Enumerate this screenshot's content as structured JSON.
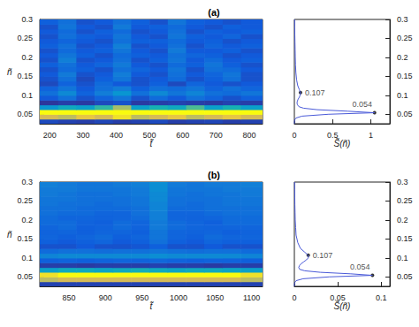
{
  "chart_data": [
    {
      "type": "heatmap",
      "title": "(a)",
      "x_label": "t̃",
      "y_label": "ñ",
      "xlim": [
        170,
        840
      ],
      "ylim": [
        0.025,
        0.3
      ],
      "xticks": [
        200,
        300,
        400,
        500,
        600,
        700,
        800
      ],
      "yticks": [
        0.05,
        0.1,
        0.15,
        0.2,
        0.25,
        0.3
      ],
      "x_edges": [
        170,
        225,
        280,
        335,
        390,
        445,
        500,
        555,
        610,
        665,
        720,
        775,
        840
      ],
      "y_edges": [
        0.025,
        0.0375,
        0.05,
        0.0625,
        0.075,
        0.0875,
        0.1,
        0.1125,
        0.125,
        0.1375,
        0.15,
        0.1625,
        0.175,
        0.1875,
        0.2,
        0.2125,
        0.225,
        0.2375,
        0.25,
        0.2625,
        0.275,
        0.2875,
        0.3
      ],
      "color_range": [
        0,
        1
      ],
      "z": [
        [
          0.08,
          0.06,
          0.05,
          0.07,
          0.05,
          0.06,
          0.08,
          0.05,
          0.06,
          0.07,
          0.05,
          0.06
        ],
        [
          0.85,
          0.8,
          0.9,
          0.85,
          0.95,
          0.8,
          0.85,
          0.9,
          0.8,
          0.85,
          0.9,
          0.85
        ],
        [
          1,
          1,
          1,
          1,
          1,
          1,
          1,
          1,
          1,
          1,
          1,
          1
        ],
        [
          0.35,
          0.45,
          0.4,
          0.55,
          0.75,
          0.4,
          0.5,
          0.45,
          0.6,
          0.4,
          0.5,
          0.4
        ],
        [
          0.03,
          0.05,
          0.04,
          0.08,
          0.1,
          0.04,
          0.05,
          0.06,
          0.05,
          0.04,
          0.06,
          0.05
        ],
        [
          0.12,
          0.2,
          0.1,
          0.15,
          0.22,
          0.1,
          0.18,
          0.12,
          0.2,
          0.15,
          0.1,
          0.14
        ],
        [
          0.2,
          0.3,
          0.15,
          0.25,
          0.35,
          0.2,
          0.3,
          0.22,
          0.28,
          0.2,
          0.18,
          0.22
        ],
        [
          0.15,
          0.22,
          0.12,
          0.2,
          0.25,
          0.14,
          0.2,
          0.18,
          0.22,
          0.15,
          0.2,
          0.16
        ],
        [
          0.08,
          0.15,
          0.1,
          0.18,
          0.12,
          0.1,
          0.14,
          0.08,
          0.16,
          0.12,
          0.1,
          0.12
        ],
        [
          0.1,
          0.2,
          0.08,
          0.14,
          0.22,
          0.1,
          0.12,
          0.18,
          0.1,
          0.14,
          0.2,
          0.1
        ],
        [
          0.12,
          0.24,
          0.1,
          0.12,
          0.25,
          0.12,
          0.1,
          0.2,
          0.12,
          0.16,
          0.22,
          0.1
        ],
        [
          0.1,
          0.18,
          0.14,
          0.1,
          0.2,
          0.16,
          0.12,
          0.22,
          0.1,
          0.2,
          0.18,
          0.12
        ],
        [
          0.14,
          0.2,
          0.12,
          0.16,
          0.24,
          0.12,
          0.1,
          0.18,
          0.14,
          0.22,
          0.14,
          0.1
        ],
        [
          0.1,
          0.26,
          0.1,
          0.12,
          0.2,
          0.1,
          0.14,
          0.22,
          0.12,
          0.18,
          0.12,
          0.14
        ],
        [
          0.12,
          0.22,
          0.14,
          0.1,
          0.18,
          0.14,
          0.12,
          0.2,
          0.16,
          0.14,
          0.1,
          0.12
        ],
        [
          0.1,
          0.18,
          0.12,
          0.14,
          0.22,
          0.12,
          0.1,
          0.24,
          0.12,
          0.12,
          0.14,
          0.1
        ],
        [
          0.14,
          0.2,
          0.1,
          0.12,
          0.26,
          0.1,
          0.12,
          0.2,
          0.1,
          0.16,
          0.12,
          0.14
        ],
        [
          0.12,
          0.16,
          0.12,
          0.1,
          0.2,
          0.14,
          0.14,
          0.18,
          0.12,
          0.14,
          0.1,
          0.12
        ],
        [
          0.1,
          0.2,
          0.14,
          0.12,
          0.22,
          0.12,
          0.1,
          0.22,
          0.14,
          0.12,
          0.16,
          0.1
        ],
        [
          0.12,
          0.18,
          0.1,
          0.14,
          0.18,
          0.1,
          0.12,
          0.2,
          0.1,
          0.14,
          0.12,
          0.14
        ],
        [
          0.1,
          0.22,
          0.12,
          0.1,
          0.24,
          0.12,
          0.14,
          0.18,
          0.12,
          0.1,
          0.14,
          0.12
        ],
        [
          0.14,
          0.2,
          0.1,
          0.12,
          0.2,
          0.14,
          0.1,
          0.22,
          0.14,
          0.12,
          0.1,
          0.12
        ]
      ]
    },
    {
      "type": "line",
      "x_label": "S̃(ñ)",
      "xlim": [
        0,
        1.25
      ],
      "ylim": [
        0.025,
        0.3
      ],
      "xticks": [
        0,
        0.5,
        1
      ],
      "yticks": [
        0.05,
        0.1,
        0.15,
        0.2,
        0.25,
        0.3
      ],
      "color": "#4a5ad8",
      "y": [
        0.025,
        0.03,
        0.035,
        0.04,
        0.045,
        0.05,
        0.054,
        0.058,
        0.062,
        0.066,
        0.07,
        0.075,
        0.08,
        0.085,
        0.09,
        0.095,
        0.1,
        0.107,
        0.115,
        0.125,
        0.14,
        0.16,
        0.18,
        0.2,
        0.22,
        0.24,
        0.26,
        0.28,
        0.3
      ],
      "x": [
        0,
        0,
        0.005,
        0.02,
        0.1,
        0.45,
        1.05,
        0.7,
        0.3,
        0.12,
        0.06,
        0.04,
        0.035,
        0.04,
        0.05,
        0.065,
        0.075,
        0.08,
        0.065,
        0.045,
        0.03,
        0.02,
        0.015,
        0.012,
        0.01,
        0.008,
        0.006,
        0.005,
        0.004
      ],
      "peaks": [
        {
          "n": 0.054,
          "S": 1.05
        },
        {
          "n": 0.107,
          "S": 0.08
        }
      ]
    },
    {
      "type": "heatmap",
      "title": "(b)",
      "x_label": "t̃",
      "y_label": "ñ",
      "xlim": [
        810,
        1115
      ],
      "ylim": [
        0.025,
        0.3
      ],
      "xticks": [
        850,
        900,
        950,
        1000,
        1050,
        1100
      ],
      "yticks": [
        0.05,
        0.1,
        0.15,
        0.2,
        0.25,
        0.3
      ],
      "x_edges": [
        810,
        835,
        860,
        885,
        910,
        935,
        960,
        985,
        1010,
        1035,
        1060,
        1085,
        1115
      ],
      "y_edges": [
        0.025,
        0.0375,
        0.05,
        0.0625,
        0.075,
        0.0875,
        0.1,
        0.1125,
        0.125,
        0.1375,
        0.15,
        0.1625,
        0.175,
        0.1875,
        0.2,
        0.2125,
        0.225,
        0.2375,
        0.25,
        0.2625,
        0.275,
        0.2875,
        0.3
      ],
      "color_range": [
        0,
        1
      ],
      "z": [
        [
          0.06,
          0.06,
          0.06,
          0.06,
          0.06,
          0.06,
          0.06,
          0.06,
          0.06,
          0.06,
          0.06,
          0.06
        ],
        [
          0.8,
          0.85,
          0.85,
          0.85,
          0.85,
          0.85,
          0.85,
          0.85,
          0.85,
          0.85,
          0.85,
          0.8
        ],
        [
          0.95,
          1,
          1,
          1,
          1,
          1,
          1,
          1,
          1,
          1,
          1,
          0.95
        ],
        [
          0.4,
          0.45,
          0.45,
          0.42,
          0.45,
          0.48,
          0.45,
          0.42,
          0.45,
          0.45,
          0.42,
          0.4
        ],
        [
          0.05,
          0.05,
          0.04,
          0.05,
          0.05,
          0.05,
          0.06,
          0.05,
          0.05,
          0.04,
          0.05,
          0.05
        ],
        [
          0.14,
          0.15,
          0.14,
          0.15,
          0.16,
          0.15,
          0.17,
          0.15,
          0.14,
          0.15,
          0.15,
          0.14
        ],
        [
          0.28,
          0.3,
          0.3,
          0.3,
          0.3,
          0.3,
          0.32,
          0.3,
          0.3,
          0.3,
          0.3,
          0.28
        ],
        [
          0.18,
          0.2,
          0.2,
          0.19,
          0.2,
          0.2,
          0.22,
          0.2,
          0.19,
          0.2,
          0.2,
          0.18
        ],
        [
          0.1,
          0.1,
          0.12,
          0.1,
          0.1,
          0.11,
          0.14,
          0.1,
          0.1,
          0.12,
          0.1,
          0.1
        ],
        [
          0.14,
          0.12,
          0.14,
          0.16,
          0.12,
          0.14,
          0.2,
          0.14,
          0.12,
          0.16,
          0.14,
          0.14
        ],
        [
          0.16,
          0.14,
          0.16,
          0.18,
          0.14,
          0.16,
          0.22,
          0.16,
          0.14,
          0.18,
          0.16,
          0.16
        ],
        [
          0.15,
          0.16,
          0.14,
          0.16,
          0.16,
          0.14,
          0.22,
          0.16,
          0.15,
          0.16,
          0.14,
          0.15
        ],
        [
          0.16,
          0.18,
          0.14,
          0.15,
          0.18,
          0.15,
          0.24,
          0.18,
          0.16,
          0.15,
          0.16,
          0.16
        ],
        [
          0.18,
          0.18,
          0.15,
          0.14,
          0.18,
          0.16,
          0.24,
          0.18,
          0.16,
          0.14,
          0.18,
          0.18
        ],
        [
          0.18,
          0.16,
          0.16,
          0.15,
          0.16,
          0.18,
          0.26,
          0.16,
          0.15,
          0.16,
          0.18,
          0.18
        ],
        [
          0.2,
          0.18,
          0.18,
          0.16,
          0.16,
          0.2,
          0.26,
          0.16,
          0.16,
          0.18,
          0.2,
          0.2
        ],
        [
          0.2,
          0.2,
          0.18,
          0.18,
          0.18,
          0.2,
          0.28,
          0.18,
          0.18,
          0.2,
          0.2,
          0.2
        ],
        [
          0.22,
          0.2,
          0.2,
          0.18,
          0.2,
          0.22,
          0.28,
          0.2,
          0.18,
          0.2,
          0.22,
          0.22
        ],
        [
          0.22,
          0.22,
          0.2,
          0.2,
          0.2,
          0.22,
          0.3,
          0.2,
          0.2,
          0.2,
          0.22,
          0.22
        ],
        [
          0.24,
          0.22,
          0.2,
          0.2,
          0.22,
          0.24,
          0.3,
          0.22,
          0.2,
          0.22,
          0.22,
          0.24
        ],
        [
          0.24,
          0.24,
          0.22,
          0.22,
          0.22,
          0.24,
          0.32,
          0.22,
          0.22,
          0.22,
          0.24,
          0.24
        ],
        [
          0.26,
          0.24,
          0.22,
          0.22,
          0.24,
          0.26,
          0.32,
          0.24,
          0.22,
          0.24,
          0.24,
          0.26
        ]
      ]
    },
    {
      "type": "line",
      "x_label": "S̃(ñ)",
      "xlim": [
        0,
        0.11
      ],
      "ylim": [
        0.025,
        0.3
      ],
      "xticks": [
        0,
        0.05,
        0.1
      ],
      "yticks": [
        0.05,
        0.1,
        0.15,
        0.2,
        0.25,
        0.3
      ],
      "color": "#4a5ad8",
      "y": [
        0.025,
        0.03,
        0.035,
        0.04,
        0.045,
        0.05,
        0.054,
        0.058,
        0.062,
        0.066,
        0.07,
        0.075,
        0.08,
        0.085,
        0.09,
        0.095,
        0.1,
        0.107,
        0.115,
        0.125,
        0.14,
        0.16,
        0.18,
        0.2,
        0.22,
        0.24,
        0.26,
        0.28,
        0.3
      ],
      "x": [
        0,
        0,
        0.0005,
        0.002,
        0.01,
        0.04,
        0.09,
        0.065,
        0.03,
        0.012,
        0.006,
        0.005,
        0.006,
        0.008,
        0.011,
        0.014,
        0.016,
        0.016,
        0.012,
        0.007,
        0.004,
        0.002,
        0.0015,
        0.001,
        0.0008,
        0.0006,
        0.0005,
        0.0004,
        0.0003
      ],
      "peaks": [
        {
          "n": 0.054,
          "S": 0.09
        },
        {
          "n": 0.107,
          "S": 0.016
        }
      ]
    }
  ]
}
